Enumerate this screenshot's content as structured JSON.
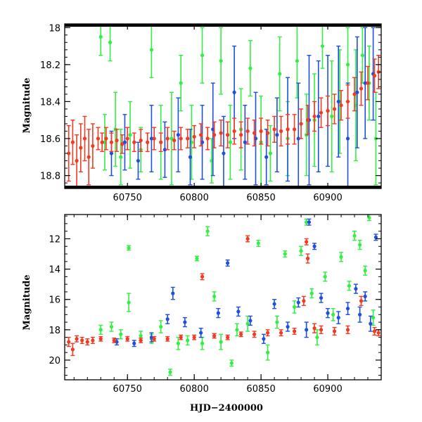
{
  "colors": {
    "green": "#33ee44",
    "blue": "#1f4fe0",
    "red": "#f23a22",
    "frame": "#000000"
  },
  "chart_data": [
    {
      "type": "scatter",
      "title": "",
      "xlabel": "",
      "ylabel": "Magnitude",
      "xlim": [
        60703,
        60940
      ],
      "ylim": [
        18.87,
        17.98
      ],
      "y_inverted": true,
      "xticks": [
        "60750",
        "60800",
        "60850",
        "60900"
      ],
      "yticks": [
        "18",
        "18.2",
        "18.4",
        "18.6",
        "18.8"
      ],
      "series": [
        {
          "color": "green",
          "x": [
            60730,
            60733,
            60737,
            60741,
            60745,
            60752,
            60760,
            60768,
            60775,
            60783,
            60790,
            60798,
            60806,
            60813,
            60820,
            60827,
            60835,
            60842,
            60850,
            60857,
            60864,
            60870,
            60877,
            60884,
            60890,
            60896,
            60903,
            60909,
            60915,
            60921,
            60926,
            60931,
            60936
          ],
          "y": [
            18.05,
            18.62,
            18.08,
            18.55,
            18.7,
            18.58,
            18.66,
            18.12,
            18.62,
            18.6,
            18.3,
            18.62,
            18.15,
            18.72,
            18.18,
            18.62,
            18.55,
            18.22,
            18.62,
            18.68,
            18.25,
            18.6,
            18.18,
            18.58,
            18.5,
            18.1,
            18.48,
            18.4,
            18.2,
            18.42,
            18.15,
            18.3,
            18.6
          ],
          "err": [
            0.1,
            0.15,
            0.1,
            0.2,
            0.15,
            0.18,
            0.12,
            0.15,
            0.2,
            0.25,
            0.15,
            0.2,
            0.15,
            0.12,
            0.18,
            0.2,
            0.22,
            0.15,
            0.25,
            0.15,
            0.2,
            0.2,
            0.2,
            0.22,
            0.25,
            0.12,
            0.3,
            0.28,
            0.2,
            0.3,
            0.15,
            0.2,
            0.25
          ]
        },
        {
          "color": "blue",
          "x": [
            60738,
            60748,
            60758,
            60768,
            60778,
            60788,
            60797,
            60806,
            60814,
            60822,
            60830,
            60838,
            60846,
            60854,
            60862,
            60870,
            60878,
            60886,
            60893,
            60900,
            60908,
            60915,
            60922,
            60928,
            60934
          ],
          "y": [
            18.68,
            18.62,
            18.72,
            18.6,
            18.66,
            18.58,
            18.7,
            18.62,
            18.55,
            18.68,
            18.35,
            18.62,
            18.6,
            18.7,
            18.58,
            18.55,
            18.6,
            18.5,
            18.48,
            18.45,
            18.4,
            18.6,
            18.35,
            18.3,
            18.25
          ],
          "err": [
            0.12,
            0.15,
            0.1,
            0.18,
            0.15,
            0.2,
            0.15,
            0.2,
            0.25,
            0.2,
            0.25,
            0.2,
            0.25,
            0.15,
            0.2,
            0.28,
            0.3,
            0.35,
            0.3,
            0.3,
            0.3,
            0.3,
            0.3,
            0.3,
            0.25
          ]
        },
        {
          "color": "red",
          "x": [
            60706,
            60709,
            60712,
            60715,
            60718,
            60721,
            60724,
            60728,
            60731,
            60734,
            60738,
            60742,
            60746,
            60750,
            60755,
            60760,
            60765,
            60770,
            60775,
            60780,
            60785,
            60790,
            60795,
            60800,
            60805,
            60810,
            60815,
            60820,
            60825,
            60830,
            60835,
            60840,
            60845,
            60850,
            60855,
            60860,
            60865,
            60870,
            60875,
            60880,
            60885,
            60890,
            60895,
            60900,
            60905,
            60910,
            60915,
            60920,
            60925,
            60930,
            60935,
            60938
          ],
          "y": [
            18.68,
            18.62,
            18.72,
            18.65,
            18.6,
            18.7,
            18.64,
            18.6,
            18.62,
            18.6,
            18.62,
            18.61,
            18.63,
            18.6,
            18.62,
            18.61,
            18.62,
            18.6,
            18.62,
            18.6,
            18.61,
            18.6,
            18.6,
            18.59,
            18.58,
            18.6,
            18.58,
            18.57,
            18.58,
            18.56,
            18.58,
            18.56,
            18.57,
            18.56,
            18.57,
            18.55,
            18.56,
            18.55,
            18.55,
            18.52,
            18.5,
            18.48,
            18.46,
            18.45,
            18.44,
            18.42,
            18.4,
            18.36,
            18.33,
            18.3,
            18.26,
            18.24
          ],
          "err": [
            0.15,
            0.12,
            0.14,
            0.13,
            0.12,
            0.15,
            0.12,
            0.06,
            0.05,
            0.06,
            0.05,
            0.06,
            0.05,
            0.06,
            0.05,
            0.06,
            0.05,
            0.06,
            0.05,
            0.06,
            0.05,
            0.06,
            0.05,
            0.06,
            0.06,
            0.06,
            0.07,
            0.07,
            0.07,
            0.07,
            0.07,
            0.07,
            0.07,
            0.07,
            0.07,
            0.07,
            0.08,
            0.08,
            0.08,
            0.08,
            0.08,
            0.08,
            0.08,
            0.08,
            0.08,
            0.08,
            0.09,
            0.09,
            0.09,
            0.09,
            0.09,
            0.09
          ]
        }
      ]
    },
    {
      "type": "scatter",
      "title": "",
      "xlabel": "HJD−2400000",
      "ylabel": "Magnitude",
      "xlim": [
        60703,
        60940
      ],
      "ylim": [
        21.3,
        10.4
      ],
      "y_inverted": true,
      "xticks": [
        "60750",
        "60800",
        "60850",
        "60900"
      ],
      "yticks": [
        "12",
        "14",
        "16",
        "18",
        "20"
      ],
      "series": [
        {
          "color": "green",
          "x": [
            60730,
            60738,
            60745,
            60751,
            60751,
            60760,
            60768,
            60775,
            60782,
            60788,
            60795,
            60802,
            60806,
            60810,
            60815,
            60820,
            60828,
            60832,
            60840,
            60848,
            60855,
            60862,
            60868,
            60875,
            60880,
            60884,
            60888,
            60892,
            60898,
            60904,
            60910,
            60916,
            60920,
            60924,
            60928,
            60931,
            60934
          ],
          "y": [
            18.0,
            17.8,
            18.3,
            12.6,
            16.2,
            18.4,
            18.6,
            17.8,
            20.8,
            18.9,
            18.7,
            13.3,
            18.9,
            11.5,
            15.8,
            18.8,
            20.2,
            18.0,
            17.6,
            12.3,
            19.5,
            17.5,
            13.0,
            16.5,
            12.8,
            10.9,
            15.6,
            18.5,
            14.5,
            17.0,
            13.2,
            15.1,
            11.8,
            12.4,
            14.1,
            10.6,
            17.2
          ],
          "err": [
            0.3,
            0.3,
            0.3,
            0.15,
            0.6,
            0.3,
            0.3,
            0.4,
            0.2,
            0.4,
            0.3,
            0.15,
            0.4,
            0.3,
            0.3,
            0.5,
            0.2,
            0.4,
            0.5,
            0.2,
            0.5,
            0.4,
            0.2,
            0.4,
            0.3,
            0.2,
            0.3,
            0.5,
            0.3,
            0.4,
            0.3,
            0.3,
            0.3,
            0.3,
            0.3,
            0.2,
            0.5
          ]
        },
        {
          "color": "blue",
          "x": [
            60742,
            60755,
            60768,
            60780,
            60784,
            60793,
            60805,
            60818,
            60825,
            60833,
            60842,
            60852,
            60860,
            60870,
            60878,
            60884,
            60886,
            60890,
            60895,
            60900,
            60908,
            60915,
            60921,
            60924,
            60928,
            60932,
            60936
          ],
          "y": [
            18.8,
            18.9,
            18.5,
            17.3,
            15.6,
            17.5,
            18.2,
            16.9,
            13.6,
            16.8,
            17.4,
            18.6,
            16.3,
            17.8,
            16.2,
            18.0,
            10.9,
            12.5,
            15.9,
            16.9,
            17.2,
            16.6,
            15.3,
            17.0,
            15.8,
            17.6,
            11.9
          ],
          "err": [
            0.2,
            0.2,
            0.3,
            0.3,
            0.4,
            0.3,
            0.3,
            0.3,
            0.2,
            0.3,
            0.3,
            0.3,
            0.3,
            0.3,
            0.3,
            0.5,
            0.2,
            0.2,
            0.3,
            0.3,
            0.4,
            0.4,
            0.3,
            0.5,
            0.3,
            0.5,
            0.2
          ]
        },
        {
          "color": "red",
          "x": [
            60706,
            60709,
            60712,
            60716,
            60720,
            60724,
            60730,
            60740,
            60750,
            60760,
            60770,
            60780,
            60790,
            60800,
            60806,
            60815,
            60825,
            60835,
            60840,
            60845,
            60855,
            60865,
            60875,
            60882,
            60884,
            60885,
            60890,
            60895,
            60905,
            60915,
            60925,
            60935,
            60938
          ],
          "y": [
            18.8,
            19.3,
            18.6,
            18.7,
            18.8,
            18.7,
            18.6,
            18.7,
            18.6,
            18.7,
            18.6,
            18.6,
            18.5,
            18.5,
            14.5,
            18.4,
            18.5,
            18.3,
            12.0,
            18.3,
            18.2,
            18.2,
            18.1,
            16.1,
            12.2,
            13.3,
            17.9,
            18.0,
            18.1,
            18.0,
            16.1,
            18.1,
            18.2
          ],
          "err": [
            0.3,
            0.4,
            0.2,
            0.2,
            0.2,
            0.2,
            0.15,
            0.15,
            0.15,
            0.15,
            0.15,
            0.15,
            0.15,
            0.15,
            0.2,
            0.15,
            0.15,
            0.15,
            0.2,
            0.2,
            0.2,
            0.2,
            0.2,
            0.3,
            0.2,
            0.3,
            0.3,
            0.25,
            0.25,
            0.25,
            0.3,
            0.25,
            0.2
          ]
        }
      ]
    }
  ]
}
